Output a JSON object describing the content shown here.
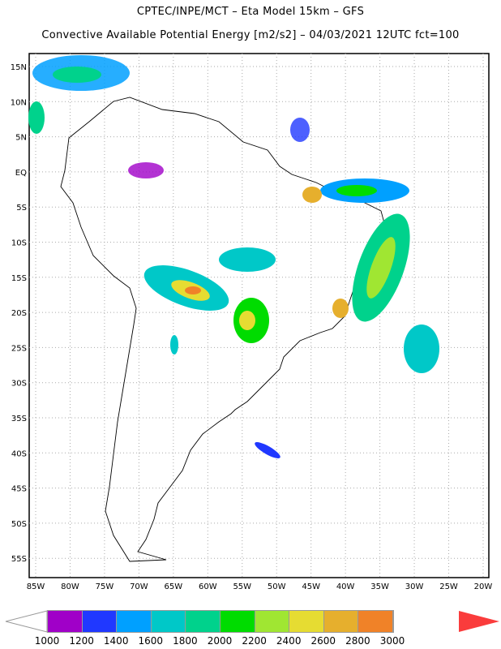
{
  "header": {
    "line1": "CPTEC/INPE/MCT –  Eta Model 15km – GFS",
    "line2": "Convective Available Potential Energy [m2/s2] – 04/03/2021 12UTC fct=100"
  },
  "axes": {
    "lat_labels": [
      "15N",
      "10N",
      "5N",
      "EQ",
      "5S",
      "10S",
      "15S",
      "20S",
      "25S",
      "30S",
      "35S",
      "40S",
      "45S",
      "50S",
      "55S"
    ],
    "lon_labels": [
      "85W",
      "80W",
      "75W",
      "70W",
      "65W",
      "60W",
      "55W",
      "50W",
      "45W",
      "40W",
      "35W",
      "30W",
      "25W",
      "20W"
    ]
  },
  "colorbar": {
    "labels": [
      "1000",
      "1200",
      "1400",
      "1600",
      "1800",
      "2000",
      "2200",
      "2400",
      "2600",
      "2800",
      "3000"
    ],
    "colors": [
      "#a000c8",
      "#2038ff",
      "#00a0ff",
      "#00c8c8",
      "#00d28c",
      "#00dc00",
      "#a0e632",
      "#e6dc32",
      "#e6af2d",
      "#f08228",
      "#fa3c3c"
    ]
  }
}
